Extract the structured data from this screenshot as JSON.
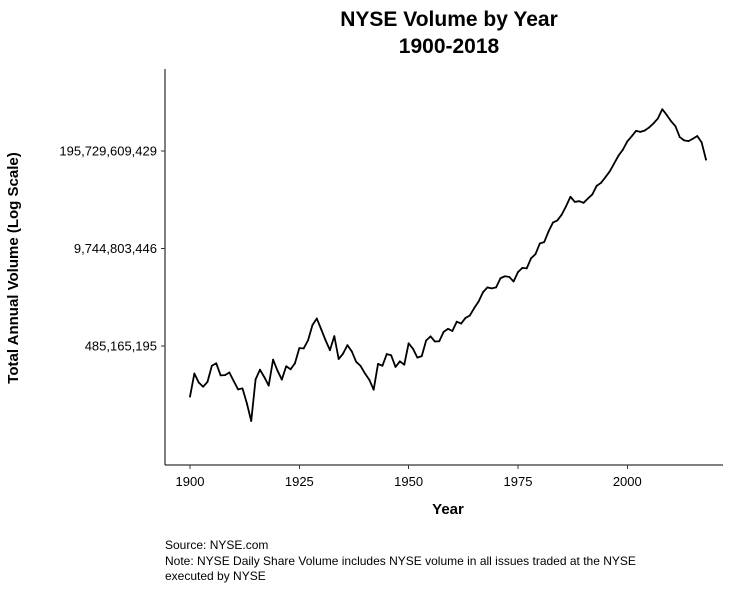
{
  "chart_data": {
    "type": "line",
    "title": "NYSE Volume by Year",
    "subtitle": "1900-2018",
    "xlabel": "Year",
    "ylabel": "Total Annual Volume (Log Scale)",
    "y_scale": "log",
    "grid": false,
    "xlim": [
      1900,
      2018
    ],
    "ylim": [
      12400000,
      2440000000000
    ],
    "x_ticks": [
      {
        "value": 1900,
        "label": "1900"
      },
      {
        "value": 1925,
        "label": "1925"
      },
      {
        "value": 1950,
        "label": "1950"
      },
      {
        "value": 1975,
        "label": "1975"
      },
      {
        "value": 2000,
        "label": "2000"
      }
    ],
    "y_ticks": [
      {
        "value": 485165195,
        "label": "485,165,195"
      },
      {
        "value": 9744803446,
        "label": "9,744,803,446"
      },
      {
        "value": 195729609429,
        "label": "195,729,609,429"
      }
    ],
    "series": [
      {
        "color": "#000000",
        "x": [
          1900,
          1901,
          1902,
          1903,
          1904,
          1905,
          1906,
          1907,
          1908,
          1909,
          1910,
          1911,
          1912,
          1913,
          1914,
          1915,
          1916,
          1917,
          1918,
          1919,
          1920,
          1921,
          1922,
          1923,
          1924,
          1925,
          1926,
          1927,
          1928,
          1929,
          1930,
          1931,
          1932,
          1933,
          1934,
          1935,
          1936,
          1937,
          1938,
          1939,
          1940,
          1941,
          1942,
          1943,
          1944,
          1945,
          1946,
          1947,
          1948,
          1949,
          1950,
          1951,
          1952,
          1953,
          1954,
          1955,
          1956,
          1957,
          1958,
          1959,
          1960,
          1961,
          1962,
          1963,
          1964,
          1965,
          1966,
          1967,
          1968,
          1969,
          1970,
          1971,
          1972,
          1973,
          1974,
          1975,
          1976,
          1977,
          1978,
          1979,
          1980,
          1981,
          1982,
          1983,
          1984,
          1985,
          1986,
          1987,
          1988,
          1989,
          1990,
          1991,
          1992,
          1993,
          1994,
          1995,
          1996,
          1997,
          1998,
          1999,
          2000,
          2001,
          2002,
          2003,
          2004,
          2005,
          2006,
          2007,
          2008,
          2009,
          2010,
          2011,
          2012,
          2013,
          2014,
          2015,
          2016,
          2017,
          2018
        ],
        "values": [
          102000000,
          207000000,
          157000000,
          138000000,
          160000000,
          263000000,
          284000000,
          196000000,
          197000000,
          214000000,
          164000000,
          127000000,
          131000000,
          83000000,
          48000000,
          173000000,
          233000000,
          185000000,
          143000000,
          318000000,
          227000000,
          172000000,
          259000000,
          236000000,
          284000000,
          453000000,
          449000000,
          577000000,
          920000000,
          1125000000,
          810000000,
          577000000,
          425000000,
          655000000,
          324000000,
          382000000,
          496000000,
          409000000,
          297000000,
          262000000,
          208000000,
          171000000,
          126000000,
          279000000,
          263000000,
          377000000,
          363000000,
          254000000,
          302000000,
          272000000,
          525000000,
          443000000,
          338000000,
          354000000,
          573000000,
          650000000,
          556000000,
          560000000,
          747000000,
          820000000,
          767000000,
          1021000000,
          963000000,
          1146000000,
          1237000000,
          1556000000,
          1899000000,
          2530000000,
          2932000000,
          2850000000,
          2937000000,
          3891000000,
          4138000000,
          4053000000,
          3517000000,
          4693000000,
          5360000000,
          5274000000,
          7205000000,
          8156000000,
          11350000000,
          11854000000,
          16458000000,
          21589000000,
          23071000000,
          27511000000,
          35680000000,
          47801000000,
          40850000000,
          41699000000,
          39665000000,
          45266000000,
          51376000000,
          66923000000,
          73420000000,
          87218000000,
          104636000000,
          133312000000,
          169745000000,
          203914000000,
          262478000000,
          307509000000,
          363136000000,
          352398000000,
          367099000000,
          403764000000,
          457501000000,
          532700000000,
          707400000000,
          595000000000,
          490000000000,
          420000000000,
          300000000000,
          271000000000,
          265000000000,
          285000000000,
          310000000000,
          255000000000,
          150000000000
        ]
      }
    ],
    "caption": [
      "Source: NYSE.com",
      "Note: NYSE Daily Share Volume includes NYSE volume in all issues traded at the NYSE",
      "executed by NYSE"
    ]
  }
}
